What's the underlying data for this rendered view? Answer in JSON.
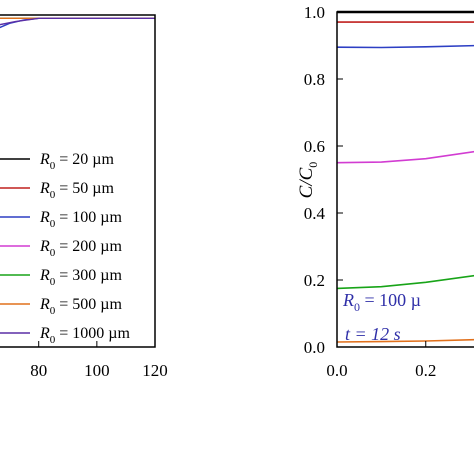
{
  "chart_data": [
    {
      "type": "line",
      "title": "",
      "xlabel": "",
      "ylabel": "",
      "xlim": [
        66,
        120
      ],
      "ylim": [
        0,
        1.0
      ],
      "x_ticks": [
        "80",
        "100",
        "120"
      ],
      "legend": {
        "placement": "bottom-right",
        "entries": [
          {
            "prefix": "R",
            "sub": "0",
            "rest": " = 20 µm",
            "color": "#000000"
          },
          {
            "prefix": "R",
            "sub": "0",
            "rest": " = 50 µm",
            "color": "#c0201f"
          },
          {
            "prefix": "R",
            "sub": "0",
            "rest": " = 100 µm",
            "color": "#2d3fc4"
          },
          {
            "prefix": "R",
            "sub": "0",
            "rest": " = 200 µm",
            "color": "#d23cd2"
          },
          {
            "prefix": "R",
            "sub": "0",
            "rest": " = 300 µm",
            "color": "#18a418"
          },
          {
            "prefix": "R",
            "sub": "0",
            "rest": " = 500 µm",
            "color": "#e0701c"
          },
          {
            "prefix": "R",
            "sub": "0",
            "rest": " = 1000 µm",
            "color": "#5a2ea6"
          }
        ]
      },
      "series": [
        {
          "name": "R0 = 20 µm",
          "color": "#000000",
          "points": [
            [
              66,
              0.99
            ],
            [
              120,
              0.99
            ]
          ]
        },
        {
          "name": "R0 = 50 µm",
          "color": "#c0201f",
          "points": [
            [
              66,
              0.99
            ],
            [
              120,
              0.99
            ]
          ]
        },
        {
          "name": "R0 = 100 µm",
          "color": "#2d3fc4",
          "points": [
            [
              66,
              0.96
            ],
            [
              70,
              0.975
            ],
            [
              75,
              0.985
            ],
            [
              80,
              0.99
            ],
            [
              120,
              0.99
            ]
          ]
        },
        {
          "name": "R0 = 200 µm",
          "color": "#d23cd2",
          "points": [
            [
              66,
              0.99
            ],
            [
              120,
              0.99
            ]
          ]
        },
        {
          "name": "R0 = 300 µm",
          "color": "#18a418",
          "points": [
            [
              66,
              0.99
            ],
            [
              120,
              0.99
            ]
          ]
        },
        {
          "name": "R0 = 500 µm",
          "color": "#e0701c",
          "points": [
            [
              66,
              0.99
            ],
            [
              120,
              0.99
            ]
          ]
        },
        {
          "name": "R0 = 1000 µm",
          "color": "#5a2ea6",
          "points": [
            [
              66,
              0.97
            ],
            [
              72,
              0.98
            ],
            [
              80,
              0.99
            ],
            [
              120,
              0.99
            ]
          ]
        }
      ]
    },
    {
      "type": "line",
      "title": "",
      "ylabel": "C/C0",
      "ylabel_main": "C/C",
      "ylabel_sub": "0",
      "xlim": [
        0.0,
        0.32
      ],
      "ylim": [
        0.0,
        1.0
      ],
      "x_ticks": [
        "0.0",
        "0.2"
      ],
      "y_ticks": [
        "0.0",
        "0.2",
        "0.4",
        "0.6",
        "0.8",
        "1.0"
      ],
      "annotations": [
        {
          "prefix": "R",
          "sub": "0",
          "rest": " = 100 µ"
        },
        {
          "text": "t = 12 s"
        }
      ],
      "series": [
        {
          "color": "#000000",
          "points": [
            [
              0.0,
              1.0
            ],
            [
              0.32,
              1.0
            ]
          ]
        },
        {
          "color": "#c0201f",
          "points": [
            [
              0.0,
              0.97
            ],
            [
              0.32,
              0.97
            ]
          ]
        },
        {
          "color": "#2d3fc4",
          "points": [
            [
              0.0,
              0.895
            ],
            [
              0.1,
              0.894
            ],
            [
              0.2,
              0.896
            ],
            [
              0.32,
              0.9
            ]
          ]
        },
        {
          "color": "#d23cd2",
          "points": [
            [
              0.0,
              0.55
            ],
            [
              0.1,
              0.552
            ],
            [
              0.2,
              0.562
            ],
            [
              0.32,
              0.585
            ]
          ]
        },
        {
          "color": "#18a418",
          "points": [
            [
              0.0,
              0.175
            ],
            [
              0.1,
              0.18
            ],
            [
              0.2,
              0.193
            ],
            [
              0.32,
              0.215
            ]
          ]
        },
        {
          "color": "#e0701c",
          "points": [
            [
              0.0,
              0.015
            ],
            [
              0.1,
              0.016
            ],
            [
              0.2,
              0.018
            ],
            [
              0.32,
              0.022
            ]
          ]
        }
      ]
    }
  ]
}
